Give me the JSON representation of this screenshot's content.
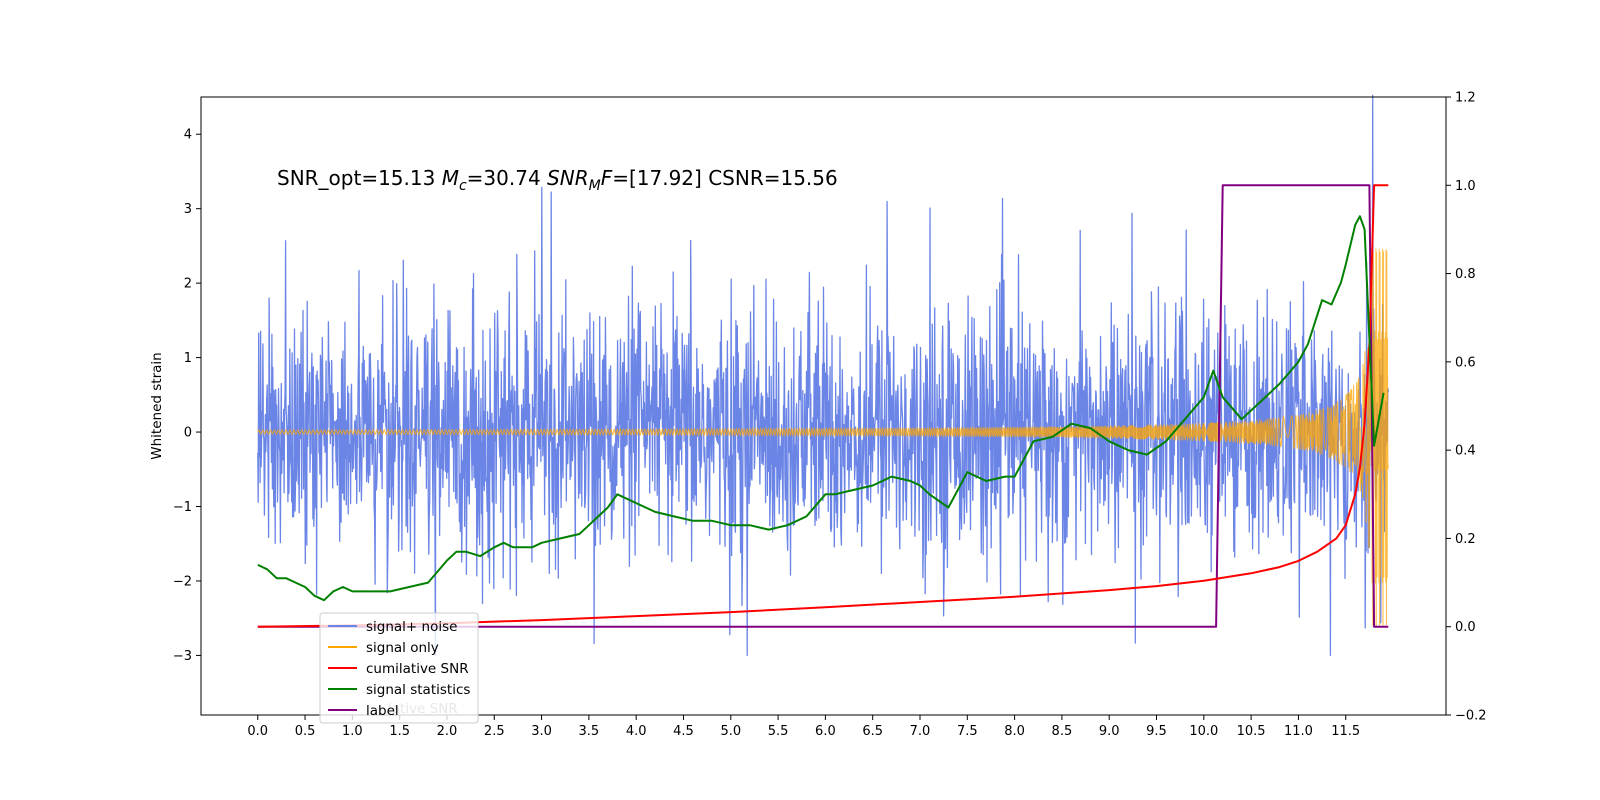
{
  "chart_data": {
    "type": "line",
    "annotation": {
      "prefix": "SNR_opt=15.13 ",
      "mc_symbol": "M",
      "mc_subscript": "c",
      "mc_value": "=30.74  ",
      "snr_symbol": "SNR",
      "snr_subscript": "M",
      "snr_f": "F",
      "snr_value": "=[17.92] CSNR=15.56"
    },
    "ylabel": "Whitened strain",
    "xlim": [
      -0.6,
      12.56
    ],
    "ylim": [
      -3.8,
      4.5
    ],
    "y2lim": [
      -0.2,
      1.2
    ],
    "x_ticks": [
      "0.0",
      "0.5",
      "1.0",
      "1.5",
      "2.0",
      "2.5",
      "3.0",
      "3.5",
      "4.0",
      "4.5",
      "5.0",
      "5.5",
      "6.0",
      "6.5",
      "7.0",
      "7.5",
      "8.0",
      "8.5",
      "9.0",
      "9.5",
      "10.0",
      "10.5",
      "11.0",
      "11.5"
    ],
    "y_ticks": [
      "4",
      "3",
      "2",
      "1",
      "0",
      "−1",
      "−2",
      "−3"
    ],
    "y2_ticks": [
      "1.2",
      "1.0",
      "0.8",
      "0.6",
      "0.4",
      "0.2",
      "0.0",
      "−0.2"
    ],
    "grid": false,
    "legend_position": "lower-left",
    "colors": {
      "noise": "#6b85e6",
      "signal": "#ffa500",
      "cumulative": "#ff0000",
      "statistics": "#008000",
      "label": "#800080"
    },
    "legend": [
      {
        "label": "signal+ noise",
        "color": "#6b85e6"
      },
      {
        "label": "signal only",
        "color": "#ffa500"
      },
      {
        "label": "cumilative SNR",
        "color": "#ff0000"
      },
      {
        "label": "signal statistics",
        "color": "#008000"
      },
      {
        "label": "label",
        "color": "#800080"
      }
    ],
    "legend_ghost_text": "lative SNR",
    "series": [
      {
        "name": "signal statistics",
        "axis": "right",
        "x": [
          0.0,
          0.1,
          0.2,
          0.3,
          0.4,
          0.5,
          0.6,
          0.7,
          0.8,
          0.9,
          1.0,
          1.2,
          1.4,
          1.6,
          1.8,
          2.0,
          2.1,
          2.2,
          2.35,
          2.5,
          2.6,
          2.7,
          2.9,
          3.0,
          3.2,
          3.4,
          3.5,
          3.6,
          3.7,
          3.8,
          4.0,
          4.2,
          4.4,
          4.6,
          4.8,
          5.0,
          5.2,
          5.4,
          5.6,
          5.8,
          6.0,
          6.1,
          6.3,
          6.5,
          6.7,
          6.9,
          7.0,
          7.1,
          7.3,
          7.5,
          7.7,
          7.9,
          8.0,
          8.2,
          8.4,
          8.6,
          8.8,
          9.0,
          9.2,
          9.4,
          9.6,
          9.8,
          10.0,
          10.1,
          10.2,
          10.4,
          10.6,
          10.8,
          11.0,
          11.1,
          11.25,
          11.35,
          11.45,
          11.5,
          11.6,
          11.65,
          11.7,
          11.8,
          11.9
        ],
        "y": [
          0.14,
          0.13,
          0.11,
          0.11,
          0.1,
          0.09,
          0.07,
          0.06,
          0.08,
          0.09,
          0.08,
          0.08,
          0.08,
          0.09,
          0.1,
          0.15,
          0.17,
          0.17,
          0.16,
          0.18,
          0.19,
          0.18,
          0.18,
          0.19,
          0.2,
          0.21,
          0.23,
          0.25,
          0.27,
          0.3,
          0.28,
          0.26,
          0.25,
          0.24,
          0.24,
          0.23,
          0.23,
          0.22,
          0.23,
          0.25,
          0.3,
          0.3,
          0.31,
          0.32,
          0.34,
          0.33,
          0.32,
          0.3,
          0.27,
          0.35,
          0.33,
          0.34,
          0.34,
          0.42,
          0.43,
          0.46,
          0.45,
          0.42,
          0.4,
          0.39,
          0.42,
          0.47,
          0.52,
          0.58,
          0.52,
          0.47,
          0.51,
          0.55,
          0.6,
          0.64,
          0.74,
          0.73,
          0.78,
          0.82,
          0.91,
          0.93,
          0.9,
          0.41,
          0.53
        ]
      },
      {
        "name": "cumilative SNR",
        "axis": "right",
        "x": [
          0.0,
          1.0,
          2.0,
          3.0,
          4.0,
          5.0,
          6.0,
          7.0,
          8.0,
          9.0,
          9.5,
          10.0,
          10.5,
          10.8,
          11.0,
          11.2,
          11.4,
          11.5,
          11.6,
          11.65,
          11.7,
          11.75,
          11.8,
          11.85,
          11.95
        ],
        "y": [
          0.0,
          0.003,
          0.008,
          0.015,
          0.024,
          0.033,
          0.044,
          0.056,
          0.068,
          0.083,
          0.092,
          0.104,
          0.121,
          0.135,
          0.149,
          0.17,
          0.2,
          0.23,
          0.3,
          0.36,
          0.46,
          0.64,
          1.0,
          1.0,
          1.0
        ]
      },
      {
        "name": "label",
        "axis": "right",
        "x": [
          0.0,
          10.13,
          10.2,
          11.75,
          11.8,
          11.95
        ],
        "y": [
          0.0,
          0.0,
          1.0,
          1.0,
          0.0,
          0.0
        ]
      }
    ]
  }
}
